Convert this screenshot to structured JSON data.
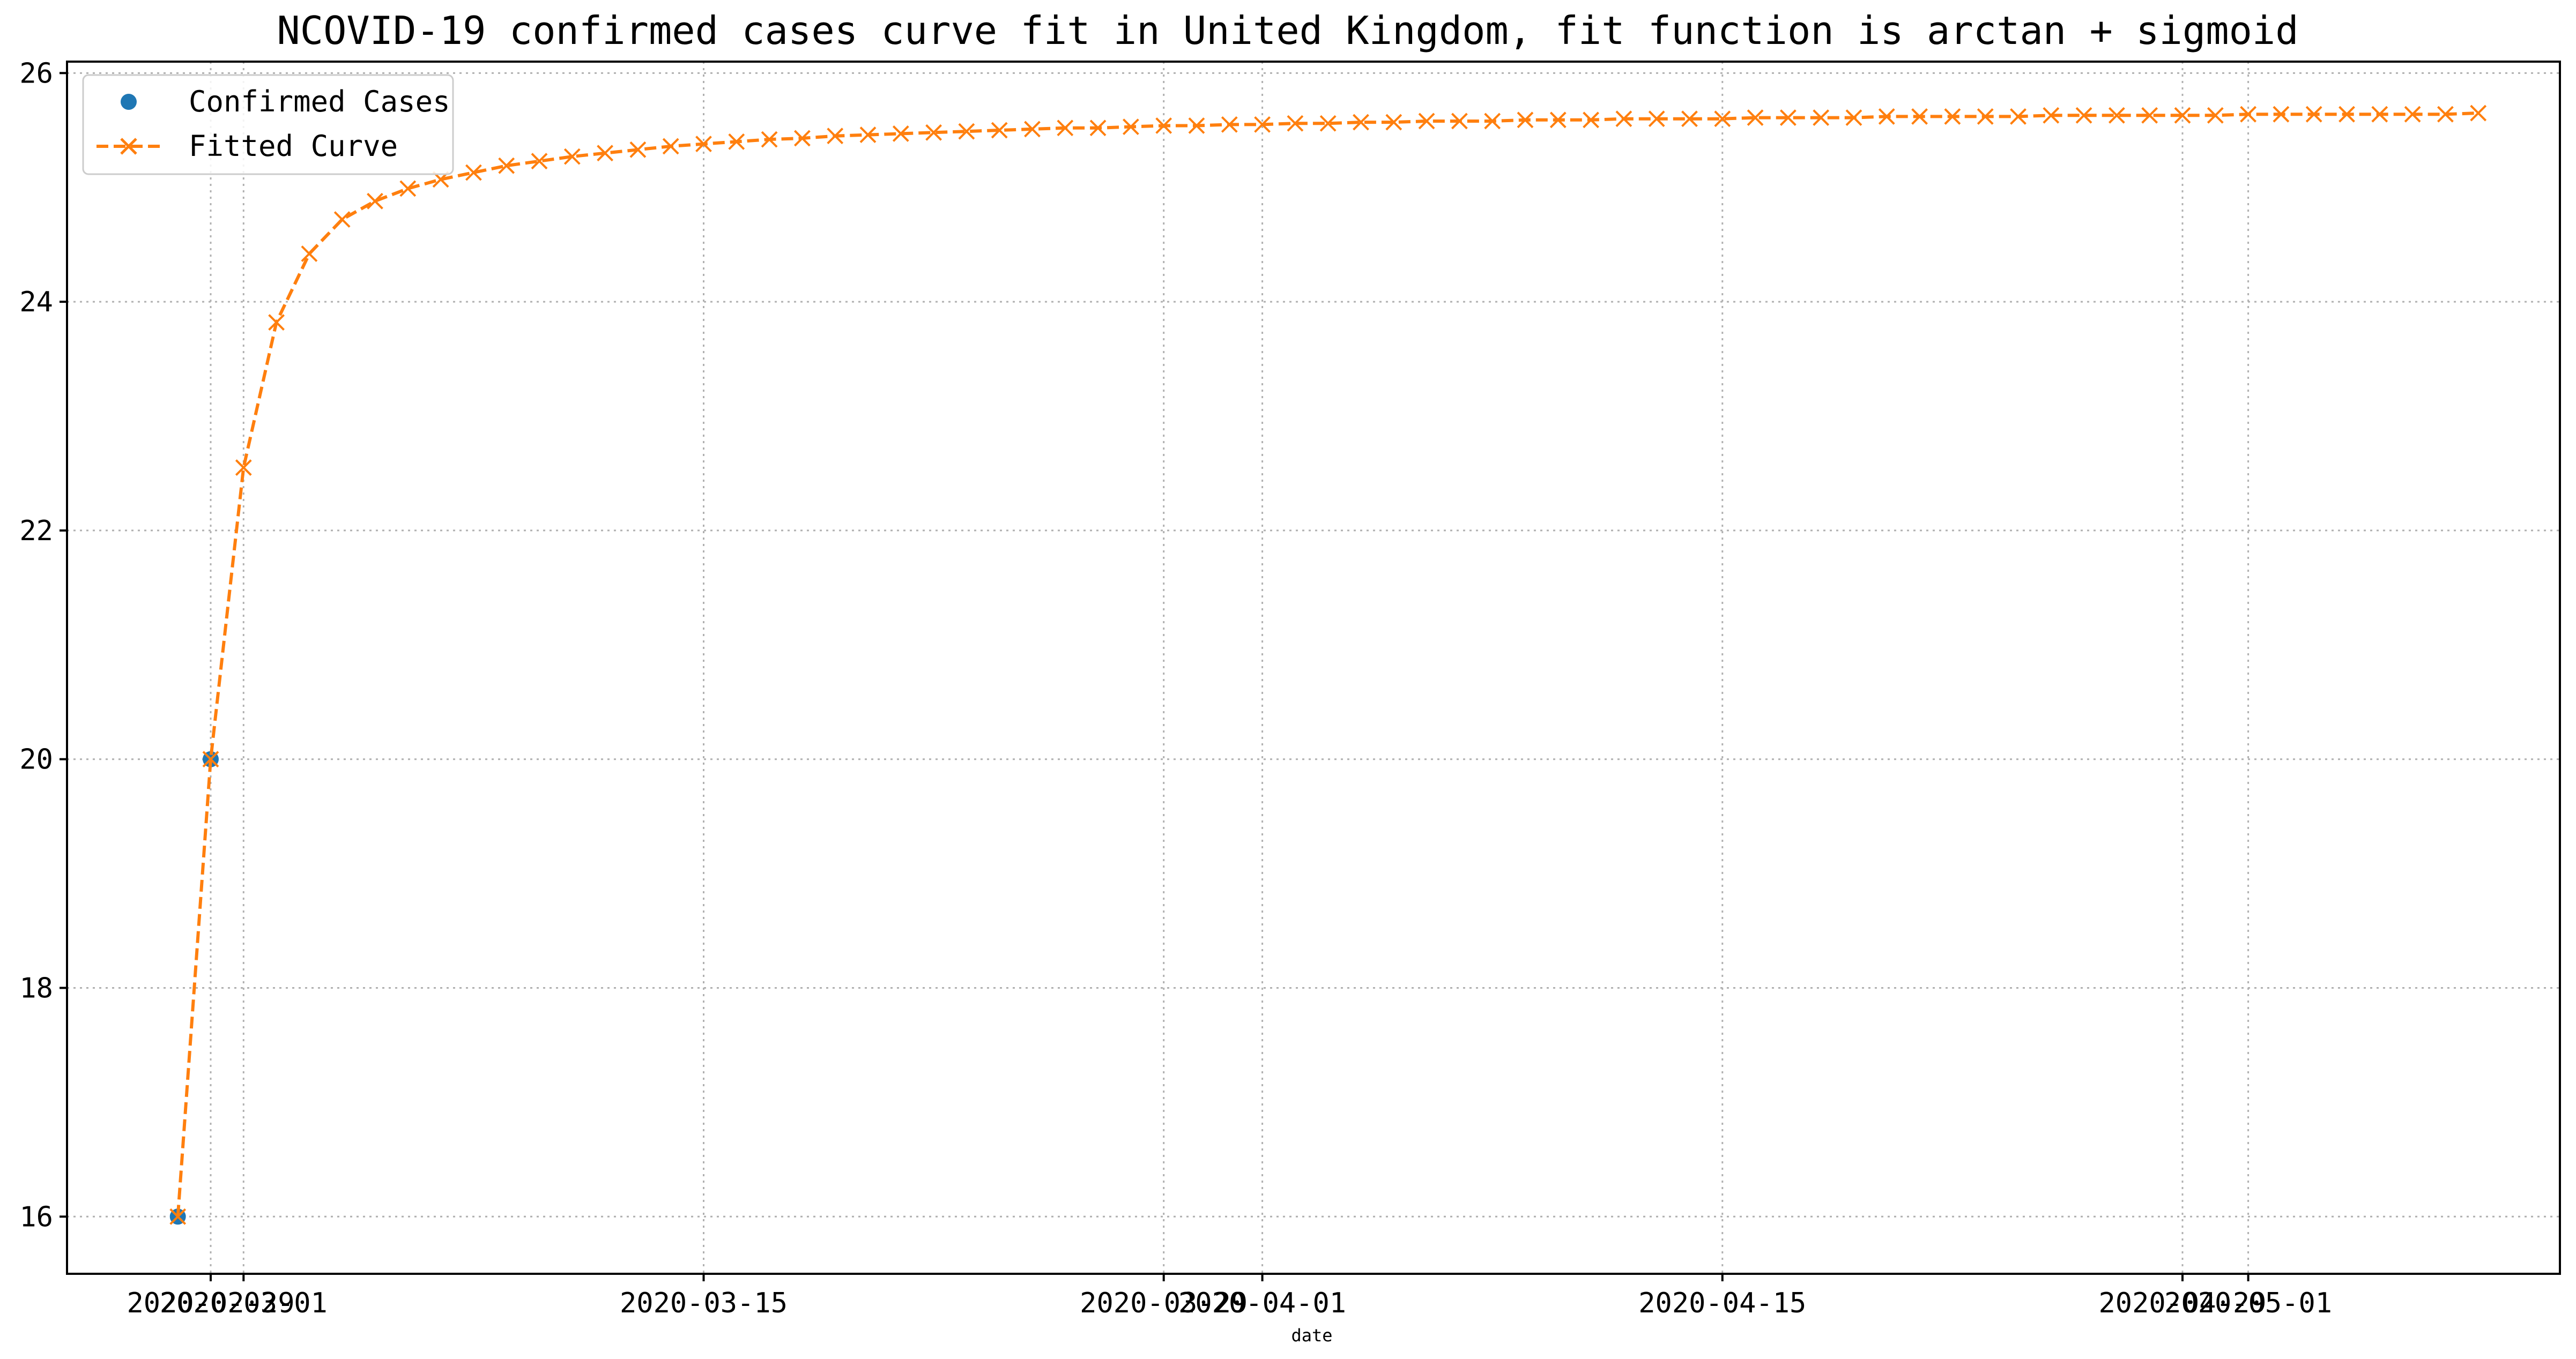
{
  "chart_data": {
    "type": "line",
    "title": "NCOVID-19 confirmed cases curve fit in United Kingdom, fit function is arctan + sigmoid",
    "xlabel": "date",
    "ylabel": "",
    "ylim": [
      15.5,
      26.1
    ],
    "yticks": [
      16,
      18,
      20,
      22,
      24,
      26
    ],
    "grid": true,
    "legend_position": "top-left",
    "colors": {
      "observed": "#1f77b4",
      "fitted": "#ff7f0e"
    },
    "x_tick_labels": [
      {
        "label": "2020-02-29",
        "day": 0
      },
      {
        "label": "2020-03-01",
        "day": 1
      },
      {
        "label": "2020-03-15",
        "day": 15
      },
      {
        "label": "2020-03-29",
        "day": 29
      },
      {
        "label": "2020-04-01",
        "day": 32
      },
      {
        "label": "2020-04-15",
        "day": 46
      },
      {
        "label": "2020-04-29",
        "day": 60
      },
      {
        "label": "2020-05-01",
        "day": 62
      }
    ],
    "series": [
      {
        "name": "Confirmed Cases",
        "style": "points",
        "x_days": [
          -1,
          0
        ],
        "values": [
          16,
          20
        ]
      },
      {
        "name": "Fitted Curve",
        "style": "dashed-line-x-markers",
        "x_start_day": -1,
        "values": [
          16.0,
          20.0,
          22.55,
          23.82,
          24.42,
          24.72,
          24.88,
          24.99,
          25.07,
          25.13,
          25.19,
          25.23,
          25.27,
          25.3,
          25.33,
          25.36,
          25.38,
          25.4,
          25.42,
          25.43,
          25.45,
          25.46,
          25.47,
          25.48,
          25.49,
          25.5,
          25.51,
          25.52,
          25.52,
          25.53,
          25.54,
          25.54,
          25.55,
          25.55,
          25.56,
          25.56,
          25.57,
          25.57,
          25.58,
          25.58,
          25.58,
          25.59,
          25.59,
          25.59,
          25.6,
          25.6,
          25.6,
          25.6,
          25.61,
          25.61,
          25.61,
          25.61,
          25.62,
          25.62,
          25.62,
          25.62,
          25.62,
          25.63,
          25.63,
          25.63,
          25.63,
          25.63,
          25.63,
          25.64,
          25.64,
          25.64,
          25.64,
          25.64,
          25.64,
          25.64,
          25.65
        ]
      }
    ]
  }
}
